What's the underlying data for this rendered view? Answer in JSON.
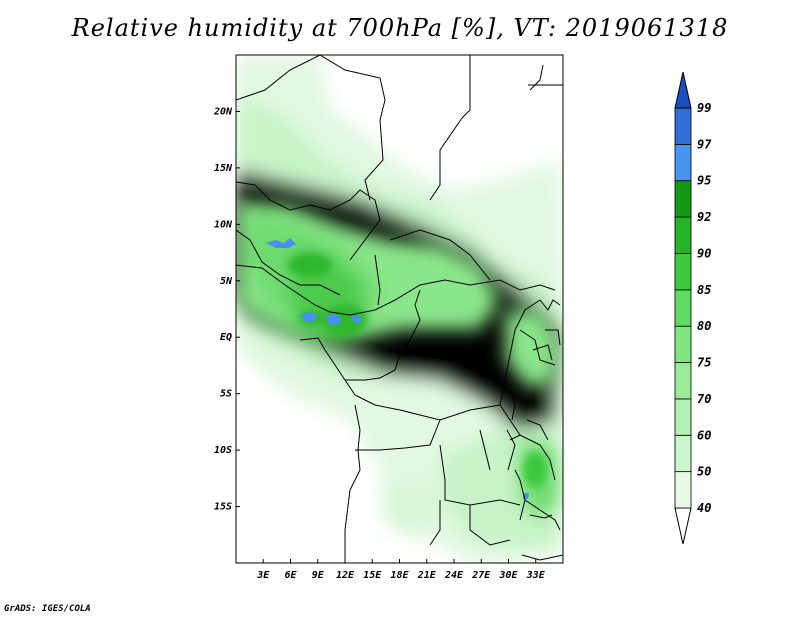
{
  "title": "Relative humidity at 700hPa [%], VT: 2019061318",
  "credit": "GrADS: IGES/COLA",
  "map": {
    "lon_range": [
      0,
      36
    ],
    "lat_range": [
      -20,
      25
    ],
    "lon_ticks": [
      {
        "value": 3,
        "label": "3E"
      },
      {
        "value": 6,
        "label": "6E"
      },
      {
        "value": 9,
        "label": "9E"
      },
      {
        "value": 12,
        "label": "12E"
      },
      {
        "value": 15,
        "label": "15E"
      },
      {
        "value": 18,
        "label": "18E"
      },
      {
        "value": 21,
        "label": "21E"
      },
      {
        "value": 24,
        "label": "24E"
      },
      {
        "value": 27,
        "label": "27E"
      },
      {
        "value": 30,
        "label": "30E"
      },
      {
        "value": 33,
        "label": "33E"
      }
    ],
    "lat_ticks": [
      {
        "value": 20,
        "label": "20N"
      },
      {
        "value": 15,
        "label": "15N"
      },
      {
        "value": 10,
        "label": "10N"
      },
      {
        "value": 5,
        "label": "5N"
      },
      {
        "value": 0,
        "label": "EQ"
      },
      {
        "value": -5,
        "label": "5S"
      },
      {
        "value": -10,
        "label": "10S"
      },
      {
        "value": -15,
        "label": "15S"
      }
    ]
  },
  "colorbar": {
    "levels": [
      "40",
      "50",
      "60",
      "70",
      "75",
      "80",
      "85",
      "90",
      "92",
      "95",
      "97",
      "99"
    ],
    "colors": [
      "#ffffff",
      "#e6fae6",
      "#cdf5cd",
      "#b3f0b3",
      "#99eb99",
      "#80e680",
      "#5fdc5f",
      "#3ec83e",
      "#26b426",
      "#139a13",
      "#4696f0",
      "#2f6fd8",
      "#1a4fbf"
    ]
  }
}
